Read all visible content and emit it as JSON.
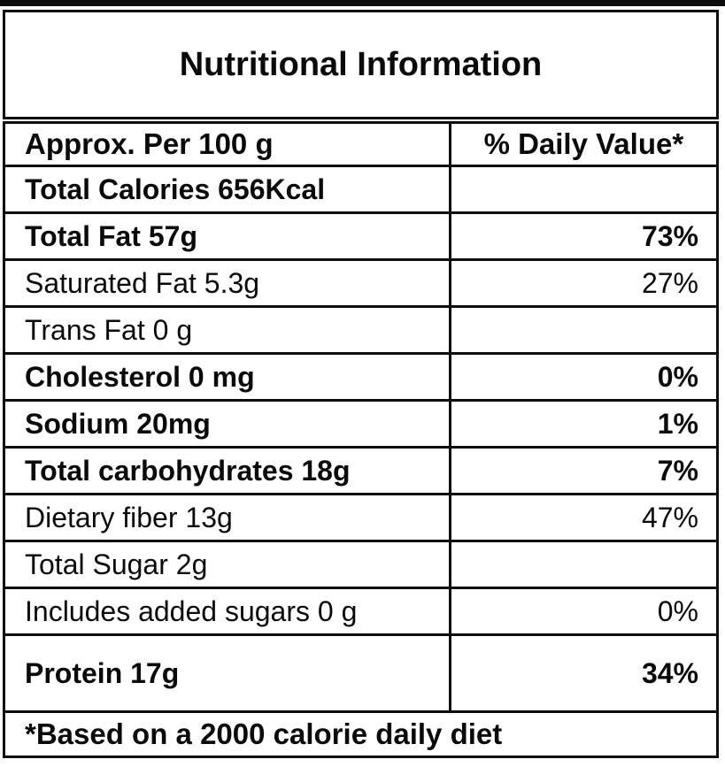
{
  "title": "Nutritional Information",
  "colors": {
    "text": "#0a0a0a",
    "border": "#0d0d0d",
    "background": "#ffffff"
  },
  "table": {
    "header": {
      "col1": "Approx. Per 100 g",
      "col2": "% Daily Value*"
    },
    "rows": [
      {
        "label": "Total Calories 656Kcal",
        "value": "",
        "emphasis": "bold"
      },
      {
        "label": "Total Fat 57g",
        "value": "73%",
        "emphasis": "bold"
      },
      {
        "label": "Saturated Fat 5.3g",
        "value": "27%",
        "emphasis": "regular"
      },
      {
        "label": "Trans Fat 0 g",
        "value": "",
        "emphasis": "regular"
      },
      {
        "label": "Cholesterol 0 mg",
        "value": "0%",
        "emphasis": "bold"
      },
      {
        "label": "Sodium 20mg",
        "value": "1%",
        "emphasis": "bold"
      },
      {
        "label": "Total carbohydrates 18g",
        "value": "7%",
        "emphasis": "bold"
      },
      {
        "label": "Dietary fiber 13g",
        "value": "47%",
        "emphasis": "regular"
      },
      {
        "label": "Total Sugar 2g",
        "value": "",
        "emphasis": "regular"
      },
      {
        "label": "Includes added sugars 0 g",
        "value": "0%",
        "emphasis": "regular"
      },
      {
        "label": "Protein 17g",
        "value": "34%",
        "emphasis": "bold"
      }
    ],
    "footer": "*Based on a 2000 calorie daily diet"
  }
}
